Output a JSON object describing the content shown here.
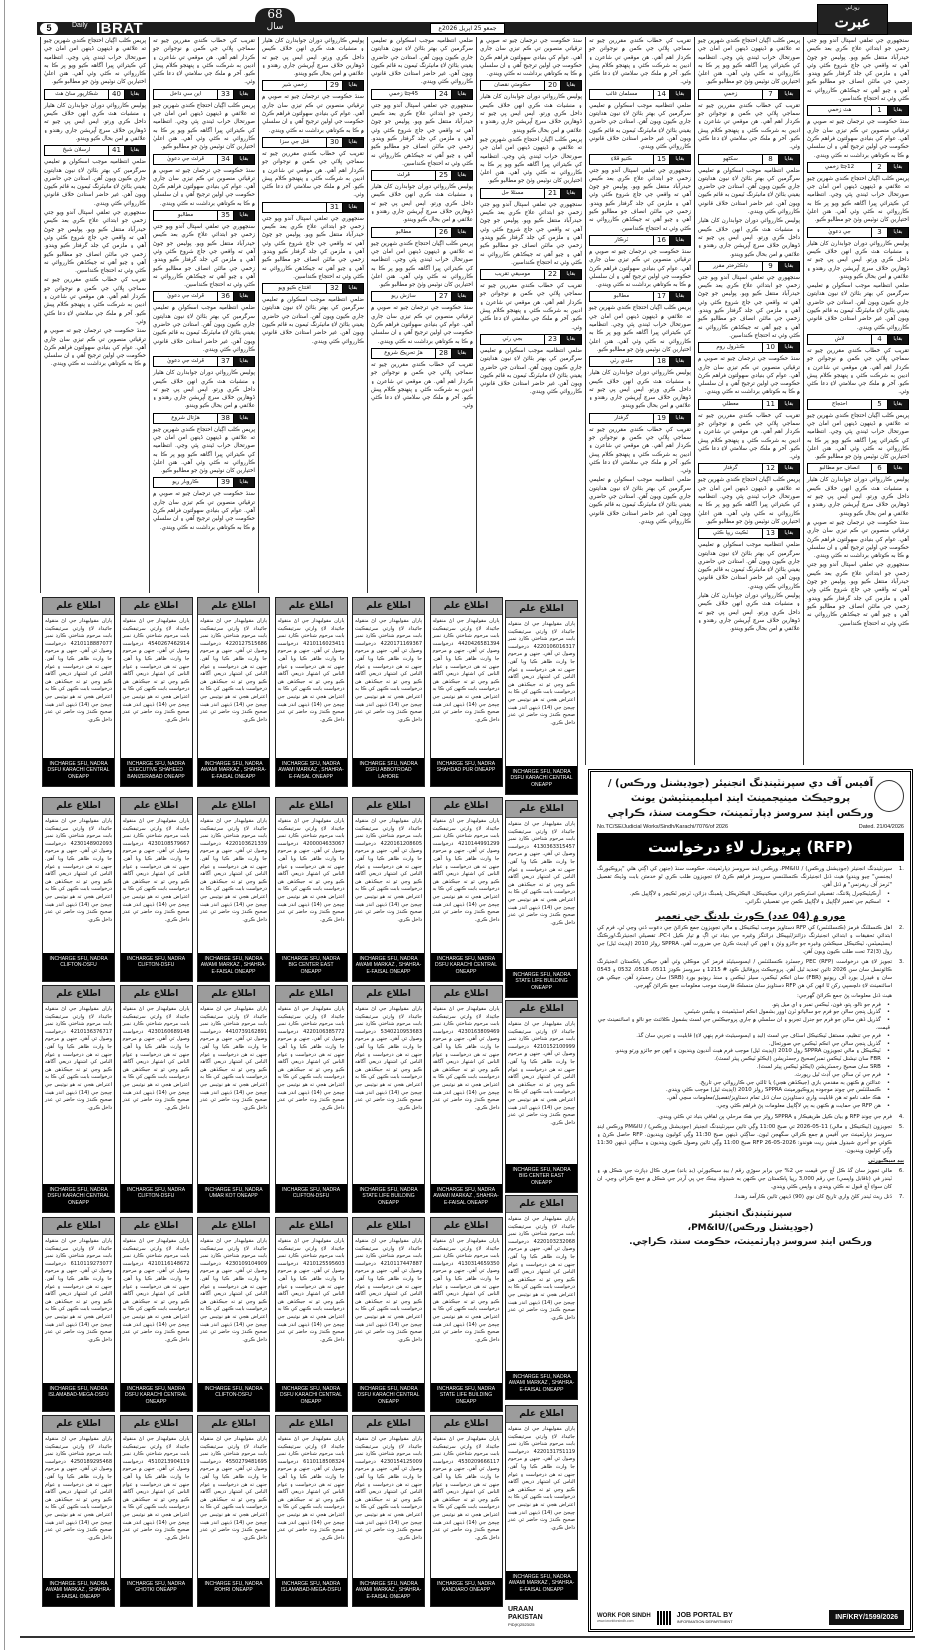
{
  "masthead": {
    "page_number": "5",
    "daily": "Daily",
    "name": "IBRAT",
    "years_num": "68",
    "years_word": "سال",
    "date": "جمعو 25 اپريل 2026ع",
    "logo_text": "عبرت",
    "logo_small": "روزاني"
  },
  "articles": {
    "cont_word": "بقايا",
    "paragraphs": [
      "سنجهوري جي تعلقي اسپتال آندو ويو جتي زخمي جو ابتدائي علاج ڪري بعد ڪيس حيدرآباد منتقل ڪيو ويو. پوليس جو چوڻ آهي ته واقعي جي جاچ شروع ڪئي وئي آهي ۽ ملزمن کي جلد گرفتار ڪيو ويندو. زخمي جي مائٽن انصاف جو مطالبو ڪيو آهي ۽ چيو آهي ته جيڪڏهن ڪارروائي نه ڪئي وئي ته احتجاج ڪنداسين.",
      "پريس ڪلب اڳيان احتجاج ڪندي شهرين چيو ته علائقي ۾ ڏينهون ڏينهن امن امان جي صورتحال خراب ٿيندي پئي وڃي. انتظاميه کي ڪيترائي ڀيرا آگاهه ڪيو ويو پر ڪا به ڪارروائي نه ڪئي وئي آهي. هنن اعليٰ اختيارين کان نوٽيس وٺڻ جو مطالبو ڪيو.",
      "ضلعي انتظاميه موجب اسڪولن ۾ تعليمي سرگرمين کي بهتر بڻائڻ لاءِ نيون هدايتون جاري ڪيون ويون آهن. استادن جي حاضري يقيني بڻائڻ لاءِ مانيٽرنگ ٽيمون به قائم ڪيون ويون آهن. غير حاضر استادن خلاف قانوني ڪارروائي ڪئي ويندي.",
      "سنڌ حڪومت جي ترجمان چيو ته صوبي ۾ ترقياتي منصوبن تي ڪم تيزي سان جاري آهي. عوام کي بنيادي سهولتون فراهم ڪرڻ حڪومت جي اولين ترجيح آهي ۽ ان سلسلي ۾ ڪا به ڪوتاهي برداشت نه ڪئي ويندي.",
      "پوليس ڪارروائي دوران جوابدارن کان هٿيار ۽ منشيات هٿ ڪري انهن خلاف ڪيس داخل ڪري ورتو. ايس ايس پي چيو ته ڏوهارين خلاف سرچ آپريشن جاري رهندو ۽ علائقي ۾ امن بحال ڪيو ويندو.",
      "تقريب کي خطاب ڪندي مقررين چيو ته سماجي ڀلائي جي ڪمن ۾ نوجوانن جو ڪردار اهم آهي. هن موقعي تي شاعرن ۽ اديبن به شرڪت ڪئي ۽ پنهنجو ڪلام پيش ڪيو. آخر ۾ ملڪ جي سلامتي لاءِ دعا ڪئي وئي."
    ],
    "columns": [
      [
        {
          "p": 0
        },
        {
          "c": [
            "1",
            "هٿ زخمي"
          ]
        },
        {
          "p": 3
        },
        {
          "c": [
            "2",
            "12ڄڻا زخمي"
          ]
        },
        {
          "p": 1
        },
        {
          "c": [
            "3",
            "جي دعويٰ"
          ]
        },
        {
          "p": 4
        },
        {
          "p": 2
        },
        {
          "c": [
            "4",
            "لاش"
          ]
        },
        {
          "p": 5
        },
        {
          "c": [
            "5",
            "احتجاج"
          ]
        },
        {
          "p": 1
        },
        {
          "c": [
            "6",
            "انصاف جو مطالبو"
          ]
        },
        {
          "p": 4
        },
        {
          "p": 3
        },
        {
          "p": 0
        }
      ],
      [
        {
          "p": 1
        },
        {
          "c": [
            "7",
            "زخمي"
          ]
        },
        {
          "p": 5
        },
        {
          "c": [
            "8",
            "سکڻهو"
          ]
        },
        {
          "p": 2
        },
        {
          "p": 4
        },
        {
          "c": [
            "9",
            "ڊاڪٽرختر مقرر"
          ]
        },
        {
          "p": 0
        },
        {
          "c": [
            "10",
            "ڪنٽرول روم"
          ]
        },
        {
          "p": 3
        },
        {
          "c": [
            "11",
            "معطلي"
          ]
        },
        {
          "p": 5
        },
        {
          "c": [
            "12",
            "گرفتار"
          ]
        },
        {
          "p": 1
        },
        {
          "c": [
            "13",
            "ٽڪيٽ ريپا ڪئي"
          ]
        },
        {
          "p": 2
        },
        {
          "p": 4
        }
      ],
      [
        {
          "p": 5
        },
        {
          "c": [
            "14",
            "مسلمان غائب"
          ]
        },
        {
          "p": 2
        },
        {
          "c": [
            "15",
            "ڪنيو ڦلاءِ"
          ]
        },
        {
          "p": 0
        },
        {
          "c": [
            "16",
            "ٽرڪار"
          ]
        },
        {
          "p": 3
        },
        {
          "c": [
            "17",
            "مطالبو"
          ]
        },
        {
          "p": 1
        },
        {
          "c": [
            "18",
            "جلدي رٽي"
          ]
        },
        {
          "p": 4
        },
        {
          "c": [
            "19",
            "گرفتار"
          ]
        },
        {
          "p": 5
        },
        {
          "p": 2
        }
      ],
      [
        {
          "p": 3
        },
        {
          "c": [
            "20",
            "حڪومتي نقصان"
          ]
        },
        {
          "p": 4
        },
        {
          "p": 1
        },
        {
          "c": [
            "21",
            "مسئلا حل"
          ]
        },
        {
          "p": 0
        },
        {
          "c": [
            "22",
            "موسيقي تقريب"
          ]
        },
        {
          "p": 5
        },
        {
          "c": [
            "23",
            "بجي رٽي"
          ]
        },
        {
          "p": 2
        }
      ],
      [
        {
          "p": 2
        },
        {
          "c": [
            "24",
            "45ڄڻا زخمي"
          ]
        },
        {
          "p": 0
        },
        {
          "c": [
            "25",
            "ڦرلٽ"
          ]
        },
        {
          "p": 4
        },
        {
          "c": [
            "26",
            "مطالبو"
          ]
        },
        {
          "p": 1
        },
        {
          "c": [
            "27",
            "سازش ريو"
          ]
        },
        {
          "p": 3
        },
        {
          "c": [
            "28",
            "هڙ تحريڪ شروع"
          ]
        },
        {
          "p": 5
        }
      ],
      [
        {
          "p": 4
        },
        {
          "c": [
            "29",
            "زخمي شير"
          ]
        },
        {
          "p": 3
        },
        {
          "c": [
            "30",
            "قتل جي سزا"
          ]
        },
        {
          "p": 5
        },
        {
          "c": [
            "31",
            ""
          ]
        },
        {
          "p": 0
        },
        {
          "c": [
            "32",
            "افتتاح ڪيو ويو"
          ]
        },
        {
          "p": 2
        }
      ],
      [
        {
          "p": 5
        },
        {
          "c": [
            "33",
            "اين سي داخل"
          ]
        },
        {
          "p": 1
        },
        {
          "c": [
            "34",
            "ڦرلٽ جي دعويٰ"
          ]
        },
        {
          "p": 3
        },
        {
          "c": [
            "35",
            "مطالبو"
          ]
        },
        {
          "p": 0
        },
        {
          "c": [
            "36",
            "ڦرلٽ جي دعويٰ"
          ]
        },
        {
          "p": 2
        },
        {
          "c": [
            "37",
            "ڦرلٽ جي دعويٰ"
          ]
        },
        {
          "p": 4
        },
        {
          "c": [
            "38",
            "هڙتال شروع"
          ]
        },
        {
          "p": 1
        },
        {
          "c": [
            "39",
            "ڪاروبار ريو"
          ]
        },
        {
          "p": 3
        }
      ],
      [
        {
          "p": 1
        },
        {
          "c": [
            "40",
            "شڪارپور ساڻ هٿ"
          ]
        },
        {
          "p": 4
        },
        {
          "c": [
            "41",
            "ارسلان شيخ"
          ]
        },
        {
          "p": 2
        },
        {
          "p": 0
        },
        {
          "p": 5
        },
        {
          "p": 3
        }
      ]
    ]
  },
  "notices": {
    "title": "اطلاع علم",
    "body_before": "پاران مقوليهدار جي اڻ منقوله جائيداد لاءِ وارثي سرٽيفڪيٽ بابت مرحوم شناختي ڪارڊ نمبر",
    "body_after": "درخواست وصول ٿي آهي. جنهن ۾ مرحوم جا وارث ظاهر ڪيا ويا آهن. جنهن ته هن درخواست ۽ عوام الناس کي اشتهار ذريعي آگاهه ڪيو وڃي ٿو ته جيڪڏهن هن درخواست بابت ڪنهن کي ڪا به اعتراض هجي ته هو نوٽيس جي ڇپجڻ جي (14) ڏينهن اندر هيٺ صحيح ڪندڙ وٽ حاضر ٿي عذر داخل ڪري.",
    "rows": [
      [
        {
          "cnic": "4210118887077",
          "office": "INCHARGE SFU, NADRA DSFU KARACHI CENTRAL ONEAPP"
        },
        {
          "cnic": "4540267462914",
          "office": "INCHARGE SFU, NADRA EXECUTIVE SHAHEED BANIZERABAD ONEAPP"
        },
        {
          "cnic": "4220127515686",
          "office": "INCHARGE SFU, NADRA AWAMI MARKAZ , SHAHRA-E-FAISAL ONEAPP"
        },
        {
          "cnic": "4210116023411",
          "office": "INCHARGE SFU, NADRA AWAMI MARKAZ , SHAHRA-E-FAISAL ONEAPP"
        },
        {
          "cnic": "4220171169367",
          "office": "INCHARGE SFU, NADRA DSFU ABBOTROAD LAHORE"
        },
        {
          "cnic": "4420426581394",
          "office": "INCHARGE SFU, NADRA SHAHDAD PUR ONEAPP"
        }
      ],
      [
        {
          "cnic": "4230148902093",
          "office": "INCHARGE SFU, NADRA CLIFTON-DSFU"
        },
        {
          "cnic": "4230108579667",
          "office": "INCHARGE SFU, NADRA CLIFTON-DSFU"
        },
        {
          "cnic": "4220103621339",
          "office": "INCHARGE SFU, NADRA AWAMI MARKAZ , SHAHRA-E-FAISAL ONEAPP"
        },
        {
          "cnic": "4200004633067",
          "office": "INCHARGE SFU, NADRA BIG CENTER EAST ONEAPP"
        },
        {
          "cnic": "4220161208605",
          "office": "INCHARGE SFU, NADRA AWAMI MARKAZ , SHAHRA-E-FAISAL ONEAPP"
        },
        {
          "cnic": "4210144991299",
          "office": "INCHARGE SFU, NADRA DSFU KARACHI CENTRAL ONEAPP"
        }
      ],
      [
        {
          "cnic": "4210136376717",
          "office": "INCHARGE SFU, NADRA DSFU KARACHI CENTRAL ONEAPP"
        },
        {
          "cnic": "4230160689148",
          "office": "INCHARGE SFU, NADRA CLIFTON-DSFU"
        },
        {
          "cnic": "4410739162891",
          "office": "INCHARGE SFU, NADRA UMAR KOT ONEAPP"
        },
        {
          "cnic": "4220106385772",
          "office": "INCHARGE SFU, NADRA CLIFTON-DSFU"
        },
        {
          "cnic": "5340210953683",
          "office": "INCHARGE SFU, NADRA STATE LIFE BUILDING ONEAPP"
        },
        {
          "cnic": "4230163809469",
          "office": "INCHARGE SFU, NADRA AWAMI MARKAZ , SHAHRA-E-FAISAL ONEAPP"
        }
      ],
      [
        {
          "cnic": "6110119273077",
          "office": "INCHARGE SFU, NADRA ISLAMABAD-MEGA-DSFU"
        },
        {
          "cnic": "4210116148672",
          "office": "INCHARGE SFU, NADRA DSFU KARACHI CENTRAL ONEAPP"
        },
        {
          "cnic": "4230109104909",
          "office": "INCHARGE SFU, NADRA CLIFTON-DSFU"
        },
        {
          "cnic": "4210125595603",
          "office": "INCHARGE SFU, NADRA DSFU KARACHI CENTRAL ONEAPP"
        },
        {
          "cnic": "4210117447887",
          "office": "INCHARGE SFU, NADRA DSFU KARACHI CENTRAL ONEAPP"
        },
        {
          "cnic": "4130314659350",
          "office": "INCHARGE SFU, NADRA STATE LIFE BUILDING ONEAPP"
        }
      ],
      [
        {
          "cnic": "4250189295468",
          "office": "INCHARGE SFU, NADRA AWAMI MARKAZ , SHAHRA-E-FAISAL ONEAPP"
        },
        {
          "cnic": "4510213904119",
          "office": "INCHARGE SFU, NADRA GHOTKI ONEAPP"
        },
        {
          "cnic": "4550279481695",
          "office": "INCHARGE SFU, NADRA ROHRI ONEAPP"
        },
        {
          "cnic": "6110118508324",
          "office": "INCHARGE SFU, NADRA ISLAMABAD-MEGA-DSFU"
        },
        {
          "cnic": "4230154125009",
          "office": "INCHARGE SFU, NADRA AWAMI MARKAZ , SHAHRA-E-FAISAL ONEAPP"
        },
        {
          "cnic": "4530209666117",
          "office": "INCHARGE SFU, NADRA KANDIARO ONEAPP"
        }
      ]
    ],
    "side_column": [
      {
        "cnic": "4220106016317",
        "office": "INCHARGE SFU, NADRA DSFU KARACHI CENTRAL ONEAPP"
      },
      {
        "cnic": "4130363315457",
        "office": "INCHARGE SFU, NADRA STATE LIFE BUILDING ONEAPP"
      },
      {
        "cnic": "4210152100999",
        "office": "INCHARGE SFU, NADRA BIG CENTER EAST ONEAPP"
      },
      {
        "cnic": "4220103232068",
        "office": "INCHARGE SFU, NADRA AWAMI MARKAZ , SHAHRA-E-FAISAL ONEAPP"
      },
      {
        "cnic": "4220131751119",
        "office": "INCHARGE SFU, NADRA AWAMI MARKAZ , SHAHRA-E-FAISAL ONEAPP"
      }
    ],
    "uraan": {
      "line1": "URAAN",
      "line2": "PAKISTAN",
      "code": "PID(K)2523/25"
    }
  },
  "rfp": {
    "heading": [
      "آفيس آف دي سپرنٽينڊنگ انجنيئر (جوڊيشنل ورڪس) /",
      "پروجيڪٽ مينيجمينٽ اينڊ امپليمينٽيشن يونٽ",
      "ورڪس اينڊ سروسز ڊپارٽمينٽ، حڪومت سنڌ، ڪراچي"
    ],
    "ref_no": "No.TC/SE/Judicial Works/Sindh/Karachi/7076/of 2026",
    "dated": "Dated. 21/04/2026",
    "banner": "(RFP) پرپوزل لاءِ درخواست",
    "p1": "سپرنٽينڊنگ انجنيئر (جوڊيشنل ورڪس) / PM&IU، ورڪس اينڊ سروسز ڊپارٽمينٽ، حڪومت سنڌ (جنهن کي اڳتي هلي \"پروڪيورنگ ايجنسي\" چيو ويندو) هيٺ ڏنل انجنيئرنگ ڪنسلٽنسي سروسز فراهم ڪرڻ لاءِ تجويزون طلب ڪري ٿو خدمتن بابت وڌيڪ تفصيل \"ٽرمز آف ريفرنس\" ۾ ڏنل آهن.",
    "p1_items": [
      "آرڪيٽيڪچرل پلاننگ، تفصيلي اسٽرڪچر ڊزائن، ميڪينيڪل، اليڪٽريڪل، پلمبنگ ڊزائن، ٽرنچر ٽڪيچر ۽ لاڳاپيل ڪم.",
      "اسڪيم جي تعمير لاڳاپيل ۽ لاڳاپيل ڪمن جي تفصيلي نگراني."
    ],
    "subtitle": "مورو ۾ (04 عدد) ڪورٽ بلڊنگ جي تعمير",
    "p2": "اهل ڪنسلٽنگ فرمز (ڪنسلٽنٽس) کي RFP دستاويز موجب ٽيڪنيڪل ۽ مالي تجويزون جمع ڪرائڻ جي دعوت ڏني وڃي ٿي. فرم کي ابتدائي تحقيقات ۽ ابتدائي انجنيئرنگ ڊزائنز/ٽيپيڪل ڊرائنگز وغيره جي بنياد تي اڳ ۾ تيار ڪيل PC-I، تفصيلي انجنيئرنگ/ورڪنگ ايسٽيميٽس، ٽيڪنيڪل سيڪشن وغيره جو جائزو وٺڻ ۽ انهن کي اپڊيٽ ڪرڻ جي ضرورت آهي. SPPRA رولز 2010 (اپڊيٽ ٿيل) جي رول (3)72 تحت طلب ڪيون ويون آهن.",
    "p3": "تجويز لاءِ هي درخواست (RFP) PEC رجسٽرڊ ڪنسلٽنٽس / ايسوسيئيٽڊ فرمز کي موڪلي وئي آهي جيڪي پاڪستان انجنيئرنگ ڪائونسل سان سن 2026 تائين تجديد ٿيل آهن. پروجيڪٽ پروفائيل ڪوڊ # 1215 ۽ سروسز ڪوڊز 0511، 0518، 0532 ۽ 0543 سان ۽ فيڊرل بورڊ آف ريونيو (FBR) سان انڪم ٽيڪس، سيلز ٽيڪس ۽ سنڌ ريونيو بورڊ (SRB) سان رجسٽرڊ آهن. جيڪي هن اسائنمينٽ لاءِ دلچسپي رکن ٿا انهن کي هن RFP دستاويز سان منسلڪ فارميٽ موجب معلومات جمع ڪرائڻ گهرجي.",
    "p3_lead": "هيٺ ڏنل معلومات پڻ جمع ڪرائڻ گهرجي:",
    "p3_items": [
      "فرم جو نالو، پتو، فون، ٽيڪس نمبر ۽ اي ميل پتو.",
      "گذريل پنجن سالن جو فرم جو ساليانو ٽرن اوور بشمول انڪم اسٽيٽمينٽ ۽ بيلنس شيٽس.",
      "گذريل ڏهن سالن جو فرم جو جنرل تجربو ۽ ان سلسلي ۾ جاري پروجيڪٽس جي لسٽ بشمول ڪلائنٽ جو نالو ۽ اسائنمينٽ جي قيمت.",
      "فرم جي تنظيم، مستقل ٽيڪنيڪل اسٽاف جي لسٽ (ليڊ ۽ ايسوسيئيٽ فرم ٻنهي لاءِ) قابليت ۽ تجربي سان گڏ.",
      "گذريل پنجن سالن جي انڪم ٽيڪس جي صورتحال.",
      "ٽيڪنيڪل ۽ مالي تجويزون SPPRA رول 2010 (اپڊيٽ ٿيل) موجب فرم هيٺ آنديون وينديون ۽ انهن جو جائزو ورتو ويندو.",
      "FBR سان نيشنل ٽيڪس نمبر/صحيح رجسٽريشن (ايڪٽو ٽيڪس پيئر لسٽ).",
      "SRB سان صحيح رجسٽريشن (ايڪٽو ٽيڪس پيئر لسٽ).",
      "فرم جي ٽن سالن جي آڊٽ ٿيل رپورٽ.",
      "عدالتن ۾ ڪنهن به مقدمي بازي (جيڪڏهن هجي) يا ثالثي جي ڪارروائي جي تاريخ.",
      "ڪنسلٽنٽس جي چونڊ موجوده پروڪيورمينٽ SPPRA رولز 2010 (اپڊيٽ ٿيل) موجب ڪئي ويندي.",
      "هڪ حلف نامو ته هن قابليت واري دستاويزن سان ڏنل تمام دستاويز/تفصيل/معلومات سچي آهي.",
      "هن RFP جي حمايت ۾ ڪنهن به ٻي لاڳاپيل معلومات پڻ فراهم ڪئي وڃي."
    ],
    "p4": "فرم جي چونڊ RFP ۾ بيان ڪيل طريقيڪار ۽ SPPRA رولز جي هڪ مرحلي ٻن لفافي بنياد تي ڪئي ويندي.",
    "p5": "تجويزون (ٽيڪنيڪل ۽ مالي) 11-05-2026 تي صبح 11:00 وڳي تائين سپرنٽينڊنگ انجنيئر (جوڊيشنل ورڪس) / PM&IU ورڪس اينڊ سروسز ڊپارٽمينٽ جي آفيس ۾ جمع ڪرائي سگهجن ٿيون. ساڳئي ڏينهن صبح 11:30 وڳي کوليون وينديون. RFP حاصل ڪرڻ ۽ ڪوئي جو آخري شيڊول هيٺين ريت هوندو: RFP 26-05-2026 صبح 11:00 وڳي تائين وصول ڪيون وينديون ۽ ساڳئي ڏينهن 11:30 وڳي کوليون وينديون.",
    "minor_head": "بيڊ سيڪيورٽي",
    "p6": "مالي تجويز سان گڏ ڪل آڇ جي قيمت جي 2% جي برابر سوڙي رقم / بيڊ سيڪيورٽي (بڊ بانڊ) صرف ڪال ڊپازٽ جي شڪل ۾، ۽ ٽينڊر في (ناقابل واپسي) جي رقم 3,000 رپيا پاڪستان جي ڪنهن به شيڊولڊ بينڪ جي پي آرڊر جي شڪل ۾ جمع ڪرائي وڃي. ان کان سواءِ آڇ قبول نه ڪئي ويندي ۽ واپس ڪئي ويندي.",
    "p7": "ڏنل ريٽ ٽينڊر کلڻ واري تاريخ کان نوي (90) ڏينهن تائين ڪارآمد رهندا.",
    "signature": [
      "سپرنٽينڊنگ انجنيئر",
      "(جوڊيشنل ورڪس)/PM&IU،",
      "ورڪس اينڊ سروسز ڊپارٽمينٽ، حڪومت سنڌ، ڪراچي."
    ],
    "footer": {
      "work_for_sindh": "WORK FOR SINDH",
      "wfs_url": "www.iworkforsindh.com",
      "job_portal": "JOB PORTAL BY",
      "info_dept": "INFORMATION DEPARTMENT",
      "inf_code": "INF/KRY/1599/2026"
    }
  }
}
